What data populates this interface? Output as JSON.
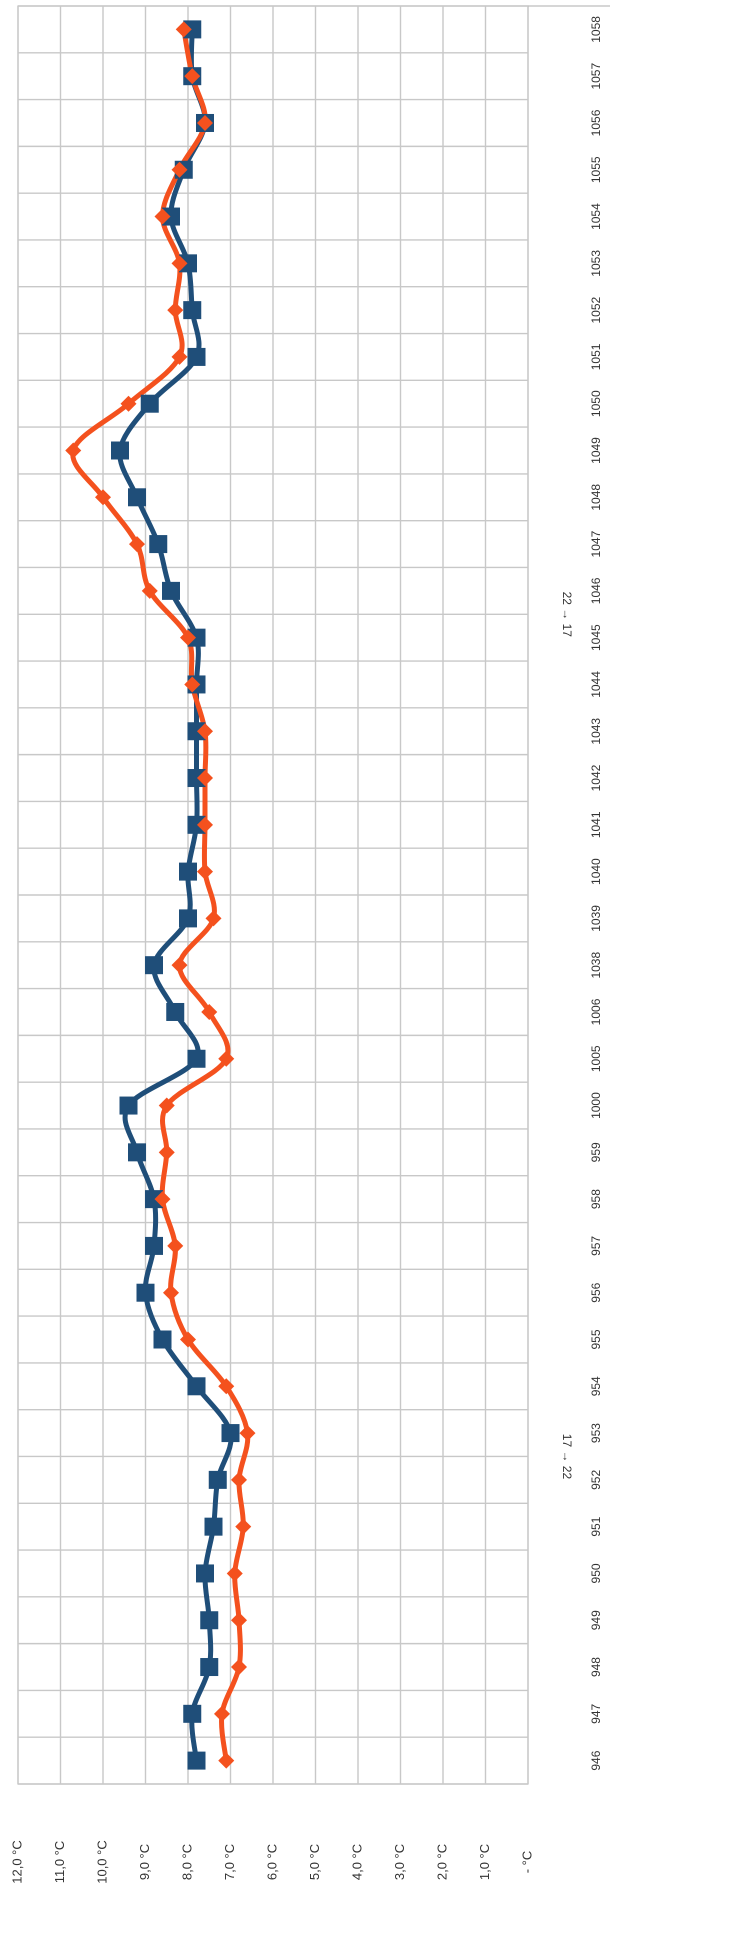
{
  "chart_data": {
    "type": "line",
    "orientation": "rotated-90",
    "y_unit_suffix": " °C",
    "y_ticks": [
      {
        "value": 0,
        "label": "- °C"
      },
      {
        "value": 1,
        "label": "1,0 °C"
      },
      {
        "value": 2,
        "label": "2,0 °C"
      },
      {
        "value": 3,
        "label": "3,0 °C"
      },
      {
        "value": 4,
        "label": "4,0 °C"
      },
      {
        "value": 5,
        "label": "5,0 °C"
      },
      {
        "value": 6,
        "label": "6,0 °C"
      },
      {
        "value": 7,
        "label": "7,0 °C"
      },
      {
        "value": 8,
        "label": "8,0 °C"
      },
      {
        "value": 9,
        "label": "9,0 °C"
      },
      {
        "value": 10,
        "label": "10,0 °C"
      },
      {
        "value": 11,
        "label": "11,0 °C"
      },
      {
        "value": 12,
        "label": "12,0 °C"
      }
    ],
    "ylim": [
      0,
      12
    ],
    "categories": [
      "946",
      "947",
      "948",
      "949",
      "950",
      "951",
      "952",
      "953",
      "954",
      "955",
      "956",
      "957",
      "958",
      "959",
      "1000",
      "1005",
      "1006",
      "1038",
      "1039",
      "1040",
      "1041",
      "1042",
      "1043",
      "1044",
      "1045",
      "1046",
      "1047",
      "1048",
      "1049",
      "1050",
      "1051",
      "1052",
      "1053",
      "1054",
      "1055",
      "1056",
      "1057",
      "1058"
    ],
    "series": [
      {
        "color": "#1f4e79",
        "marker": "square",
        "values": [
          7.8,
          7.9,
          7.5,
          7.5,
          7.6,
          7.4,
          7.3,
          7.0,
          7.8,
          8.6,
          9.0,
          8.8,
          8.8,
          9.2,
          9.4,
          7.8,
          8.3,
          8.8,
          8.0,
          8.0,
          7.8,
          7.8,
          7.8,
          7.8,
          7.8,
          8.4,
          8.7,
          9.2,
          9.6,
          8.9,
          7.8,
          7.9,
          8.0,
          8.4,
          8.1,
          7.6,
          7.9,
          7.9
        ]
      },
      {
        "color": "#f4511e",
        "marker": "diamond",
        "values": [
          7.1,
          7.2,
          6.8,
          6.8,
          6.9,
          6.7,
          6.8,
          6.6,
          7.1,
          8.0,
          8.4,
          8.3,
          8.6,
          8.5,
          8.5,
          7.1,
          7.5,
          8.2,
          7.4,
          7.6,
          7.6,
          7.6,
          7.6,
          7.9,
          8.0,
          8.9,
          9.2,
          10.0,
          10.7,
          9.4,
          8.2,
          8.3,
          8.2,
          8.6,
          8.2,
          7.6,
          7.9,
          8.1
        ]
      }
    ],
    "annotations": [
      {
        "text": "17 → 22",
        "after_category_index": 6
      },
      {
        "text": "22 → 17",
        "after_category_index": 24
      }
    ],
    "grid": true,
    "legend": "none"
  }
}
